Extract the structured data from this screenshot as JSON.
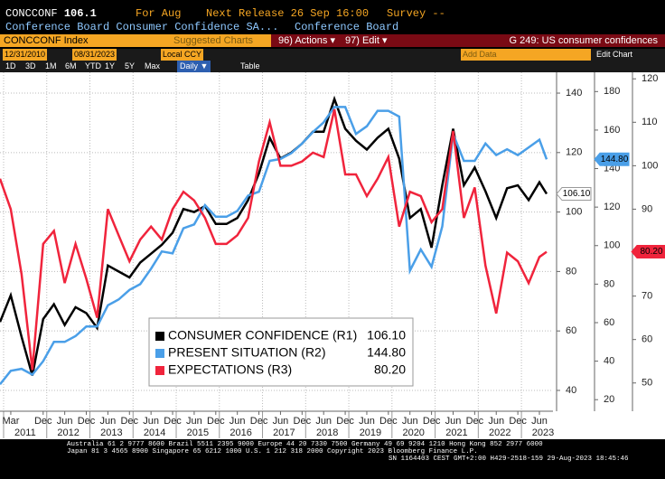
{
  "header": {
    "ticker": "CONCCONF",
    "last": "106.1",
    "period": "For Aug",
    "next_release": "Next Release 26 Sep 16:00",
    "survey": "Survey --",
    "description": "Conference Board Consumer Confidence SA...",
    "source": "Conference Board"
  },
  "toolbar": {
    "security": "CONCCONF Index",
    "suggested": "Suggested Charts",
    "actions": "96) Actions ▾",
    "edit": "97) Edit ▾",
    "page": "G 249: US consumer confidences",
    "start": "12/31/2010",
    "end": "08/31/2023",
    "currency": "Local CCY",
    "add_data": "Add Data",
    "edit_chart": "Edit Chart",
    "ranges": [
      "1D",
      "3D",
      "1M",
      "6M",
      "YTD",
      "1Y",
      "5Y",
      "Max"
    ],
    "frequency": "Daily ▼",
    "table": "Table"
  },
  "footer": {
    "line1": "Australia 61 2 9777 8600 Brazil 5511 2395 9000 Europe 44 20 7330 7500 Germany 49 69 9204 1210 Hong Kong 852 2977 6000",
    "line2": "Japan 81 3 4565 8900      Singapore 65 6212 1000      U.S. 1 212 318 2000      Copyright 2023 Bloomberg Finance L.P.",
    "line3": "SN 1164403 CEST GMT+2:00 H429-2518-159 29-Aug-2023 18:45:46"
  },
  "chart_data": {
    "type": "line",
    "grid": true,
    "x": [
      "2010-12",
      "2011-03",
      "2011-06",
      "2011-09",
      "2011-12",
      "2012-03",
      "2012-06",
      "2012-09",
      "2012-12",
      "2013-03",
      "2013-06",
      "2013-09",
      "2013-12",
      "2014-03",
      "2014-06",
      "2014-09",
      "2014-12",
      "2015-03",
      "2015-06",
      "2015-09",
      "2015-12",
      "2016-03",
      "2016-06",
      "2016-09",
      "2016-12",
      "2017-03",
      "2017-06",
      "2017-09",
      "2017-12",
      "2018-03",
      "2018-06",
      "2018-09",
      "2018-12",
      "2019-03",
      "2019-06",
      "2019-09",
      "2019-12",
      "2020-03",
      "2020-06",
      "2020-09",
      "2020-12",
      "2021-03",
      "2021-06",
      "2021-09",
      "2021-12",
      "2022-03",
      "2022-06",
      "2022-09",
      "2022-12",
      "2023-03",
      "2023-06",
      "2023-08"
    ],
    "xticks": [
      {
        "value": "2011-03",
        "label": "Mar"
      },
      {
        "value": "2011-12",
        "label": "Dec"
      },
      {
        "value": "2012-06",
        "label": "Jun"
      },
      {
        "value": "2012-12",
        "label": "Dec"
      },
      {
        "value": "2013-06",
        "label": "Jun"
      },
      {
        "value": "2013-12",
        "label": "Dec"
      },
      {
        "value": "2014-06",
        "label": "Jun"
      },
      {
        "value": "2014-12",
        "label": "Dec"
      },
      {
        "value": "2015-06",
        "label": "Jun"
      },
      {
        "value": "2015-12",
        "label": "Dec"
      },
      {
        "value": "2016-06",
        "label": "Jun"
      },
      {
        "value": "2016-12",
        "label": "Dec"
      },
      {
        "value": "2017-06",
        "label": "Jun"
      },
      {
        "value": "2017-12",
        "label": "Dec"
      },
      {
        "value": "2018-06",
        "label": "Jun"
      },
      {
        "value": "2018-12",
        "label": "Dec"
      },
      {
        "value": "2019-06",
        "label": "Jun"
      },
      {
        "value": "2019-12",
        "label": "Dec"
      },
      {
        "value": "2020-06",
        "label": "Jun"
      },
      {
        "value": "2020-12",
        "label": "Dec"
      },
      {
        "value": "2021-06",
        "label": "Jun"
      },
      {
        "value": "2021-12",
        "label": "Dec"
      },
      {
        "value": "2022-06",
        "label": "Jun"
      },
      {
        "value": "2022-12",
        "label": "Dec"
      },
      {
        "value": "2023-06",
        "label": "Jun"
      }
    ],
    "years": [
      2011,
      2012,
      2013,
      2014,
      2015,
      2016,
      2017,
      2018,
      2019,
      2020,
      2021,
      2022,
      2023
    ],
    "ylim": [
      33,
      147
    ],
    "yticks": [
      40,
      60,
      80,
      100,
      120,
      140
    ],
    "y2lim": [
      14,
      190
    ],
    "y2ticks": [
      20,
      40,
      60,
      80,
      100,
      120,
      140,
      160,
      180
    ],
    "y3lim": [
      43.5,
      121.5
    ],
    "y3ticks": [
      50,
      60,
      70,
      80,
      90,
      100,
      110,
      120
    ],
    "series": [
      {
        "name": "CONSUMER CONFIDENCE (R1)",
        "color": "#000000",
        "axis": "y",
        "last_label": "106.10",
        "values": [
          63,
          72,
          58,
          45,
          64,
          69,
          62,
          68,
          66,
          61,
          82,
          80,
          78,
          83,
          86,
          89,
          93,
          101,
          100,
          102,
          96,
          96,
          98,
          104,
          113,
          125,
          118,
          120,
          123,
          127,
          127,
          138,
          128,
          124,
          121,
          125,
          128,
          118,
          98,
          101,
          88,
          109,
          128,
          109,
          115,
          107,
          98,
          108,
          109,
          104,
          110,
          106.1
        ]
      },
      {
        "name": "PRESENT SITUATION (R2)",
        "color": "#4a9fe8",
        "axis": "y2",
        "last_label": "144.80",
        "values": [
          28,
          35,
          36,
          33,
          40,
          50,
          50,
          53,
          58,
          58,
          69,
          72,
          77,
          80,
          88,
          97,
          96,
          109,
          111,
          121,
          115,
          115,
          118,
          126,
          128,
          144,
          145,
          148,
          153,
          159,
          164,
          172,
          172,
          158,
          162,
          170,
          170,
          167,
          87,
          98,
          89,
          110,
          158,
          144,
          144,
          153,
          147,
          150,
          147,
          151,
          155,
          144.8
        ]
      },
      {
        "name": "EXPECTATIONS (R3)",
        "color": "#f0243c",
        "axis": "y3",
        "last_label": "80.20",
        "values": [
          97,
          90,
          75,
          53,
          82,
          85,
          73,
          82,
          74,
          65,
          90,
          84,
          78,
          83,
          86,
          83,
          90,
          94,
          92,
          88,
          82,
          82,
          84,
          88,
          101,
          110,
          100,
          100,
          101,
          103,
          102,
          113,
          98,
          98,
          93,
          97,
          102,
          86,
          94,
          93,
          87,
          90,
          108,
          88,
          95,
          77,
          66,
          80,
          78,
          73,
          79,
          80.2
        ]
      }
    ]
  }
}
